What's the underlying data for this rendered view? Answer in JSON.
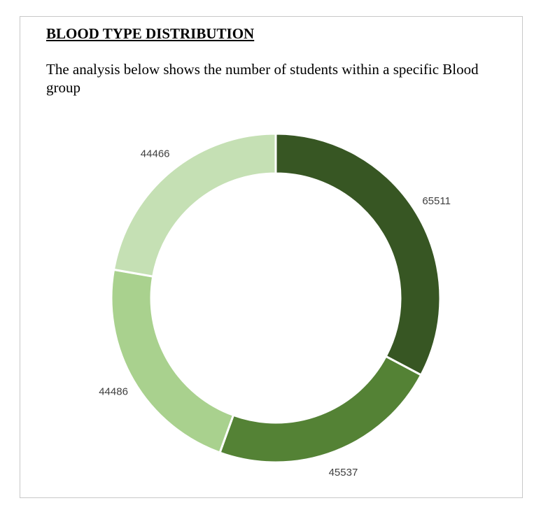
{
  "document": {
    "title": "BLOOD TYPE DISTRIBUTION",
    "description": "The analysis below shows the number of students within a specific Blood group"
  },
  "chart_data": {
    "type": "pie",
    "variant": "doughnut",
    "title": "",
    "categories": [
      "",
      "",
      "",
      ""
    ],
    "values": [
      65511,
      45537,
      44486,
      44466
    ],
    "colors": [
      "#375623",
      "#548235",
      "#a9d18e",
      "#c5e0b4"
    ],
    "slice_border_color": "#ffffff",
    "start_angle": "12 o'clock",
    "direction": "clockwise",
    "data_labels": "outside",
    "legend": "none"
  }
}
